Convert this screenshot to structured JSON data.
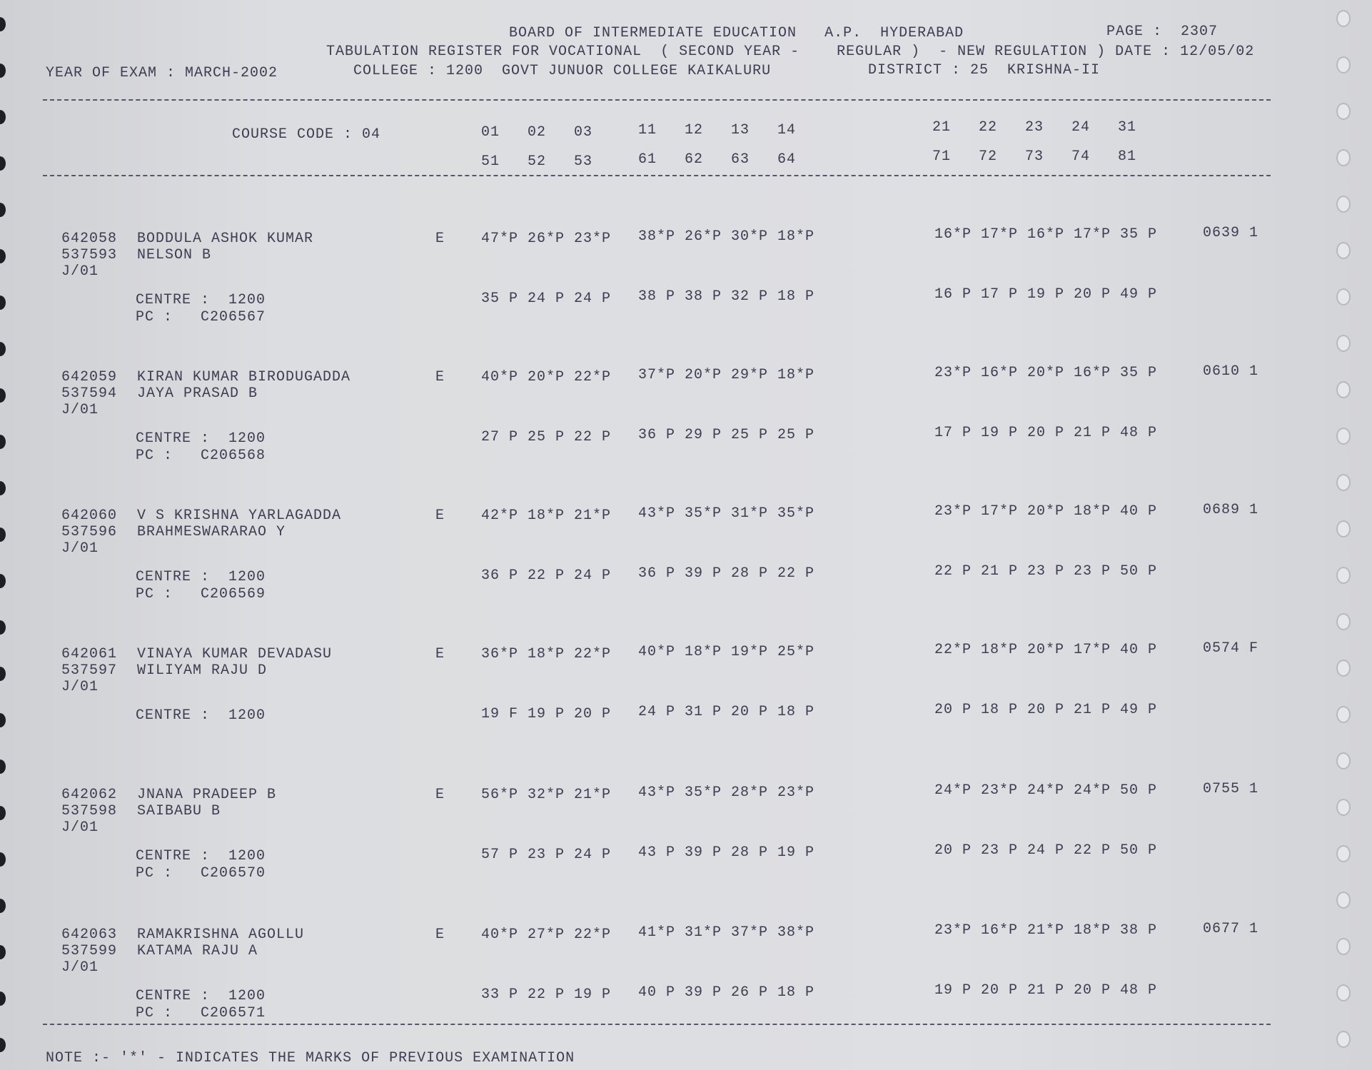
{
  "header": {
    "line1": "BOARD OF INTERMEDIATE EDUCATION   A.P.  HYDERABAD",
    "page_label": "PAGE :  2307",
    "line2": "TABULATION REGISTER FOR VOCATIONAL  ( SECOND YEAR -    REGULAR )  - NEW REGULATION ) DATE : 12/05/02",
    "year_of_exam": "YEAR OF EXAM : MARCH-2002",
    "college": "COLLEGE : 1200  GOVT JUNUOR COLLEGE KAIKALURU",
    "district": "DISTRICT : 25  KRISHNA-II"
  },
  "columns": {
    "course_code": "COURSE CODE : 04",
    "row1_g1": "01   02   03",
    "row1_g2": "11   12   13   14",
    "row1_g3": "21   22   23   24   31",
    "row2_g1": "51   52   53",
    "row2_g2": "61   62   63   64",
    "row2_g3": "71   72   73   74   81"
  },
  "records": [
    {
      "id": "642058",
      "name": "BODDULA ASHOK KUMAR",
      "roll": "537593",
      "father": "NELSON B",
      "batch": "J/01",
      "e": "E",
      "m1": "47*P 26*P 23*P",
      "m2": "38*P 26*P 30*P 18*P",
      "m3": "16*P 17*P 16*P 17*P 35 P",
      "total": "0639 1",
      "centre": "CENTRE :  1200",
      "pc": "PC :   C206567",
      "c1": "35 P 24 P 24 P",
      "c2": "38 P 38 P 32 P 18 P",
      "c3": "16 P 17 P 19 P 20 P 49 P"
    },
    {
      "id": "642059",
      "name": "KIRAN KUMAR BIRODUGADDA",
      "roll": "537594",
      "father": "JAYA PRASAD B",
      "batch": "J/01",
      "e": "E",
      "m1": "40*P 20*P 22*P",
      "m2": "37*P 20*P 29*P 18*P",
      "m3": "23*P 16*P 20*P 16*P 35 P",
      "total": "0610 1",
      "centre": "CENTRE :  1200",
      "pc": "PC :   C206568",
      "c1": "27 P 25 P 22 P",
      "c2": "36 P 29 P 25 P 25 P",
      "c3": "17 P 19 P 20 P 21 P 48 P"
    },
    {
      "id": "642060",
      "name": "V S KRISHNA YARLAGADDA",
      "roll": "537596",
      "father": "BRAHMESWARARAO Y",
      "batch": "J/01",
      "e": "E",
      "m1": "42*P 18*P 21*P",
      "m2": "43*P 35*P 31*P 35*P",
      "m3": "23*P 17*P 20*P 18*P 40 P",
      "total": "0689 1",
      "centre": "CENTRE :  1200",
      "pc": "PC :   C206569",
      "c1": "36 P 22 P 24 P",
      "c2": "36 P 39 P 28 P 22 P",
      "c3": "22 P 21 P 23 P 23 P 50 P"
    },
    {
      "id": "642061",
      "name": "VINAYA KUMAR DEVADASU",
      "roll": "537597",
      "father": "WILIYAM RAJU D",
      "batch": "J/01",
      "e": "E",
      "m1": "36*P 18*P 22*P",
      "m2": "40*P 18*P 19*P 25*P",
      "m3": "22*P 18*P 20*P 17*P 40 P",
      "total": "0574 F",
      "centre": "CENTRE :  1200",
      "pc": "",
      "c1": "19 F 19 P 20 P",
      "c2": "24 P 31 P 20 P 18 P",
      "c3": "20 P 18 P 20 P 21 P 49 P"
    },
    {
      "id": "642062",
      "name": "JNANA PRADEEP B",
      "roll": "537598",
      "father": "SAIBABU B",
      "batch": "J/01",
      "e": "E",
      "m1": "56*P 32*P 21*P",
      "m2": "43*P 35*P 28*P 23*P",
      "m3": "24*P 23*P 24*P 24*P 50 P",
      "total": "0755 1",
      "centre": "CENTRE :  1200",
      "pc": "PC :   C206570",
      "c1": "57 P 23 P 24 P",
      "c2": "43 P 39 P 28 P 19 P",
      "c3": "20 P 23 P 24 P 22 P 50 P"
    },
    {
      "id": "642063",
      "name": "RAMAKRISHNA AGOLLU",
      "roll": "537599",
      "father": "KATAMA RAJU A",
      "batch": "J/01",
      "e": "E",
      "m1": "40*P 27*P 22*P",
      "m2": "41*P 31*P 37*P 38*P",
      "m3": "23*P 16*P 21*P 18*P 38 P",
      "total": "0677 1",
      "centre": "CENTRE :  1200",
      "pc": "PC :   C206571",
      "c1": "33 P 22 P 19 P",
      "c2": "40 P 39 P 26 P 18 P",
      "c3": "19 P 20 P 21 P 20 P 48 P"
    }
  ],
  "note": "NOTE :- '*' - INDICATES THE MARKS OF PREVIOUS EXAMINATION"
}
